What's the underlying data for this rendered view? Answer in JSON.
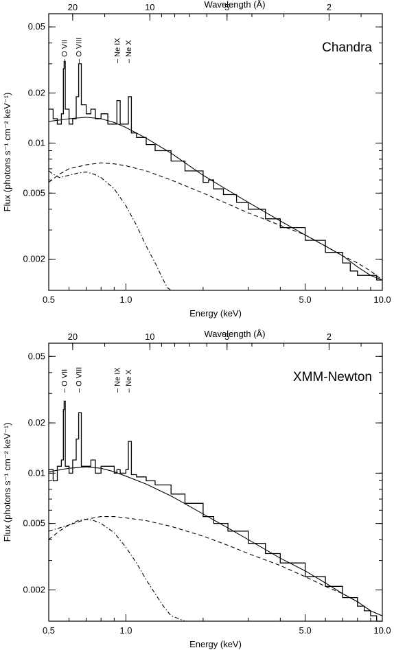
{
  "chart_data": [
    {
      "type": "line",
      "title": "Chandra",
      "xlabel": "Energy (keV)",
      "ylabel": "Flux (photons s⁻¹ cm⁻² keV⁻¹)",
      "top_axis_label": "Wavelength (Å)",
      "xscale": "log",
      "yscale": "log",
      "xlim": [
        0.5,
        10.0
      ],
      "ylim": [
        0.0013,
        0.06
      ],
      "xticks": [
        {
          "v": 0.5,
          "label": "0.5"
        },
        {
          "v": 1.0,
          "label": "1.0"
        },
        {
          "v": 5.0,
          "label": "5.0"
        },
        {
          "v": 10.0,
          "label": "10.0"
        }
      ],
      "yticks": [
        {
          "v": 0.002,
          "label": "0.002"
        },
        {
          "v": 0.005,
          "label": "0.005"
        },
        {
          "v": 0.01,
          "label": "0.01"
        },
        {
          "v": 0.02,
          "label": "0.02"
        },
        {
          "v": 0.05,
          "label": "0.05"
        }
      ],
      "top_ticks": [
        {
          "wavelength": 20,
          "label": "20"
        },
        {
          "wavelength": 10,
          "label": "10"
        },
        {
          "wavelength": 5,
          "label": "5"
        },
        {
          "wavelength": 2,
          "label": "2"
        }
      ],
      "line_labels": [
        {
          "label": "O VII",
          "energy": 0.574
        },
        {
          "label": "O VIII",
          "energy": 0.654
        },
        {
          "label": "Ne IX",
          "energy": 0.922
        },
        {
          "label": "Ne X",
          "energy": 1.022
        }
      ],
      "series": [
        {
          "style": "data",
          "x": [
            0.5,
            0.52,
            0.54,
            0.56,
            0.57,
            0.574,
            0.58,
            0.6,
            0.62,
            0.64,
            0.654,
            0.67,
            0.7,
            0.73,
            0.76,
            0.8,
            0.85,
            0.9,
            0.922,
            0.95,
            1.0,
            1.022,
            1.05,
            1.1,
            1.2,
            1.3,
            1.5,
            1.7,
            2.0,
            2.1,
            2.2,
            2.4,
            2.7,
            3.0,
            3.5,
            4.0,
            5.0,
            6.0,
            7.0,
            7.5,
            8.0,
            8.5,
            9.0,
            9.5,
            10.0
          ],
          "y": [
            0.016,
            0.014,
            0.013,
            0.015,
            0.028,
            0.031,
            0.016,
            0.013,
            0.014,
            0.019,
            0.03,
            0.017,
            0.015,
            0.016,
            0.014,
            0.015,
            0.013,
            0.013,
            0.018,
            0.013,
            0.013,
            0.019,
            0.0115,
            0.0108,
            0.0098,
            0.009,
            0.0078,
            0.0068,
            0.0058,
            0.006,
            0.0053,
            0.0049,
            0.0044,
            0.004,
            0.0035,
            0.0031,
            0.0026,
            0.0022,
            0.0019,
            0.0017,
            0.0016,
            0.0016,
            0.0016,
            0.0015,
            0.0015
          ]
        },
        {
          "style": "model",
          "x": [
            0.5,
            0.6,
            0.7,
            0.8,
            0.9,
            1.0,
            1.2,
            1.5,
            2.0,
            2.5,
            3.0,
            4.0,
            5.0,
            6.0,
            7.0,
            8.0,
            9.0,
            10.0
          ],
          "y": [
            0.0135,
            0.014,
            0.0143,
            0.014,
            0.0133,
            0.0124,
            0.0107,
            0.0087,
            0.0064,
            0.0052,
            0.0044,
            0.0034,
            0.0028,
            0.0024,
            0.0021,
            0.0018,
            0.0016,
            0.0015
          ]
        },
        {
          "style": "dashed",
          "x": [
            0.5,
            0.55,
            0.6,
            0.7,
            0.8,
            0.9,
            1.0,
            1.2,
            1.5,
            2.0,
            2.5,
            3.0,
            4.0,
            5.0,
            6.0,
            7.0,
            8.0,
            9.0,
            10.0
          ],
          "y": [
            0.0058,
            0.0065,
            0.007,
            0.0074,
            0.0076,
            0.0075,
            0.0073,
            0.0068,
            0.006,
            0.005,
            0.0043,
            0.0038,
            0.0032,
            0.0028,
            0.0024,
            0.0021,
            0.0019,
            0.0017,
            0.0015
          ]
        },
        {
          "style": "dashdot",
          "x": [
            0.5,
            0.52,
            0.55,
            0.6,
            0.65,
            0.7,
            0.75,
            0.8,
            0.9,
            1.0,
            1.1,
            1.2,
            1.3,
            1.4,
            1.45,
            1.5
          ],
          "y": [
            0.0068,
            0.0065,
            0.0062,
            0.0064,
            0.0066,
            0.0067,
            0.0065,
            0.0062,
            0.0053,
            0.0042,
            0.0032,
            0.0024,
            0.0019,
            0.0015,
            0.00135,
            0.0013
          ]
        }
      ]
    },
    {
      "type": "line",
      "title": "XMM-Newton",
      "xlabel": "Energy (keV)",
      "ylabel": "Flux (photons s⁻¹ cm⁻² keV⁻¹)",
      "top_axis_label": "Wavelength (Å)",
      "xscale": "log",
      "yscale": "log",
      "xlim": [
        0.5,
        10.0
      ],
      "ylim": [
        0.0013,
        0.06
      ],
      "xticks": [
        {
          "v": 0.5,
          "label": "0.5"
        },
        {
          "v": 1.0,
          "label": "1.0"
        },
        {
          "v": 5.0,
          "label": "5.0"
        },
        {
          "v": 10.0,
          "label": "10.0"
        }
      ],
      "yticks": [
        {
          "v": 0.002,
          "label": "0.002"
        },
        {
          "v": 0.005,
          "label": "0.005"
        },
        {
          "v": 0.01,
          "label": "0.01"
        },
        {
          "v": 0.02,
          "label": "0.02"
        },
        {
          "v": 0.05,
          "label": "0.05"
        }
      ],
      "top_ticks": [
        {
          "wavelength": 20,
          "label": "20"
        },
        {
          "wavelength": 10,
          "label": "10"
        },
        {
          "wavelength": 5,
          "label": "5"
        },
        {
          "wavelength": 2,
          "label": "2"
        }
      ],
      "line_labels": [
        {
          "label": "O VII",
          "energy": 0.574
        },
        {
          "label": "O VIII",
          "energy": 0.654
        },
        {
          "label": "Ne IX",
          "energy": 0.922
        },
        {
          "label": "Ne X",
          "energy": 1.022
        }
      ],
      "series": [
        {
          "style": "data",
          "x": [
            0.5,
            0.52,
            0.54,
            0.56,
            0.57,
            0.574,
            0.58,
            0.6,
            0.62,
            0.64,
            0.654,
            0.67,
            0.7,
            0.73,
            0.76,
            0.8,
            0.85,
            0.9,
            0.922,
            0.95,
            1.0,
            1.022,
            1.05,
            1.1,
            1.2,
            1.3,
            1.5,
            1.7,
            2.0,
            2.2,
            2.5,
            3.0,
            3.5,
            4.0,
            5.0,
            6.0,
            7.0,
            8.0,
            8.5,
            9.0,
            9.5,
            10.0
          ],
          "y": [
            0.0105,
            0.009,
            0.011,
            0.012,
            0.024,
            0.027,
            0.011,
            0.01,
            0.012,
            0.016,
            0.023,
            0.011,
            0.011,
            0.012,
            0.01,
            0.011,
            0.011,
            0.01,
            0.0105,
            0.01,
            0.0105,
            0.0155,
            0.0098,
            0.0095,
            0.009,
            0.0085,
            0.0075,
            0.0066,
            0.0055,
            0.005,
            0.0045,
            0.0038,
            0.0033,
            0.0029,
            0.0024,
            0.0021,
            0.0018,
            0.0016,
            0.0015,
            0.0014,
            0.0013,
            0.0013
          ]
        },
        {
          "style": "model",
          "x": [
            0.5,
            0.6,
            0.7,
            0.8,
            0.9,
            1.0,
            1.2,
            1.5,
            2.0,
            2.5,
            3.0,
            4.0,
            5.0,
            6.0,
            7.0,
            8.0,
            9.0,
            10.0
          ],
          "y": [
            0.0102,
            0.0107,
            0.0109,
            0.0107,
            0.0102,
            0.0096,
            0.0086,
            0.0073,
            0.0057,
            0.0047,
            0.004,
            0.0031,
            0.0026,
            0.0022,
            0.0019,
            0.0017,
            0.0015,
            0.0014
          ]
        },
        {
          "style": "dashed",
          "x": [
            0.5,
            0.55,
            0.6,
            0.7,
            0.8,
            0.9,
            1.0,
            1.2,
            1.5,
            2.0,
            2.5,
            3.0,
            4.0,
            5.0,
            6.0,
            7.0,
            8.0,
            9.0,
            10.0
          ],
          "y": [
            0.004,
            0.0045,
            0.0049,
            0.0053,
            0.0055,
            0.0055,
            0.0054,
            0.0052,
            0.0048,
            0.0042,
            0.0037,
            0.0033,
            0.0028,
            0.0024,
            0.0021,
            0.0019,
            0.0017,
            0.0015,
            0.0014
          ]
        },
        {
          "style": "dashdot",
          "x": [
            0.5,
            0.55,
            0.6,
            0.65,
            0.7,
            0.75,
            0.8,
            0.9,
            1.0,
            1.1,
            1.2,
            1.3,
            1.4,
            1.5,
            1.6,
            1.7
          ],
          "y": [
            0.0045,
            0.0047,
            0.0049,
            0.0052,
            0.0053,
            0.0052,
            0.005,
            0.0044,
            0.0036,
            0.0029,
            0.0023,
            0.0019,
            0.0016,
            0.0014,
            0.00135,
            0.0013
          ]
        }
      ]
    }
  ]
}
